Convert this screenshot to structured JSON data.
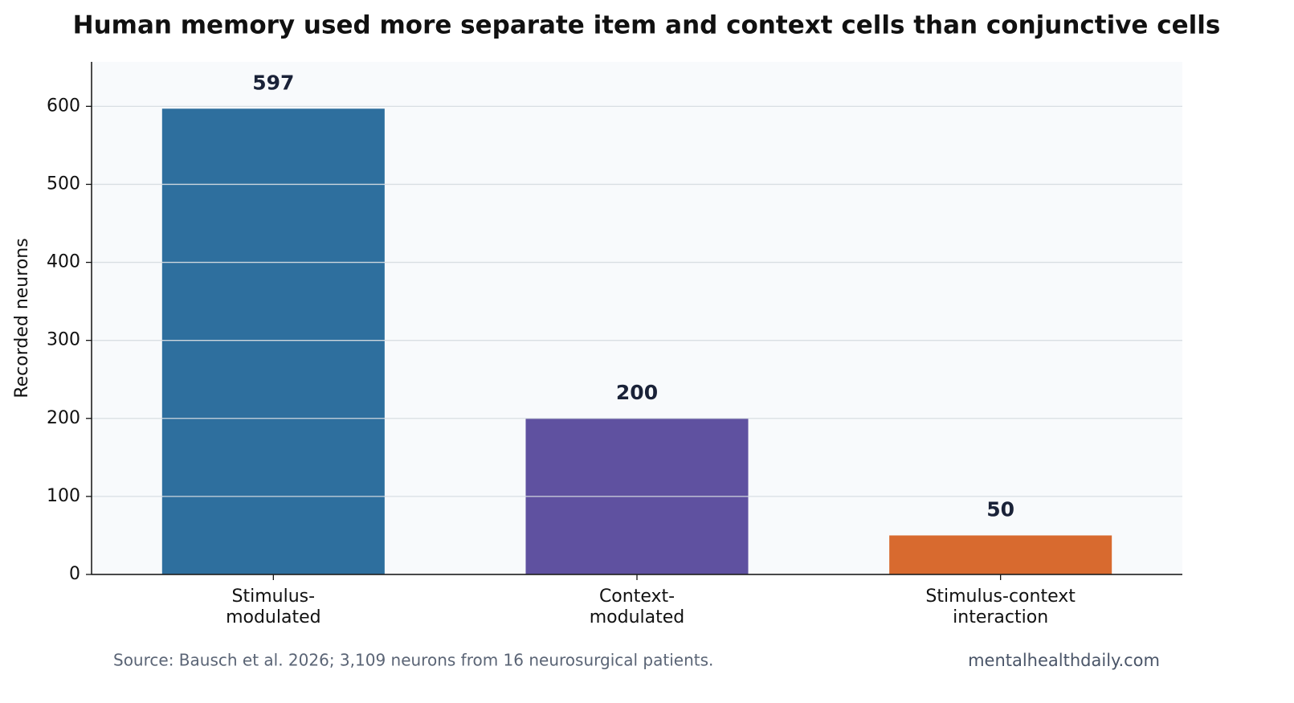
{
  "chart_data": {
    "type": "bar",
    "title": "Human memory used more separate item and context cells than conjunctive cells",
    "y_label": "Recorded neurons",
    "categories": [
      "Stimulus-\nmodulated",
      "Context-\nmodulated",
      "Stimulus-context\ninteraction"
    ],
    "values": [
      597,
      200,
      50
    ],
    "colors": [
      "#2e6f9e",
      "#5f51a0",
      "#d86a2f"
    ],
    "ylim": [
      0,
      657
    ],
    "yticks": [
      0,
      100,
      200,
      300,
      400,
      500,
      600
    ],
    "grid": true,
    "source": "Source: Bausch et al. 2026; 3,109 neurons from 16 neurosurgical patients.",
    "credit": "mentalhealthdaily.com"
  }
}
